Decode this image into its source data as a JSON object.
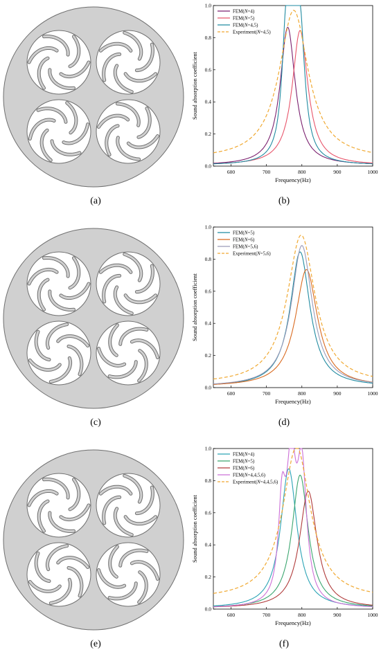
{
  "panels": [
    {
      "caption": "(a)",
      "bottom_variant": "ccw"
    },
    {
      "caption": "(c)",
      "bottom_variant": "cw"
    },
    {
      "caption": "(e)",
      "bottom_variant": "cw"
    }
  ],
  "colors": {
    "disk_fill": "#d0d0d0",
    "disk_stroke": "#6f6f6f",
    "hole_fill": "#ffffff",
    "experiment": "#f0a830"
  },
  "chart_data": [
    {
      "caption": "(b)",
      "type": "line",
      "xlabel": "Frequency(Hz)",
      "ylabel": "Sound absorption coefficient",
      "xlim": [
        550,
        1000
      ],
      "ylim": [
        0,
        1.0
      ],
      "xticks": [
        600,
        700,
        800,
        900,
        1000
      ],
      "yticks": [
        0.0,
        0.2,
        0.4,
        0.6,
        0.8,
        1.0
      ],
      "legend_position": "top-left",
      "series": [
        {
          "name": "FEM(N=4)",
          "label_pre": "FEM(",
          "label_var": "N",
          "label_post": "=4)",
          "color": "#7a1f6e",
          "dashed": false,
          "peaks": [
            {
              "f": 760,
              "a": 0.86,
              "w": 26
            }
          ],
          "base": 0.005
        },
        {
          "name": "FEM(N=5)",
          "label_pre": "FEM(",
          "label_var": "N",
          "label_post": "=5)",
          "color": "#e8546a",
          "dashed": false,
          "peaks": [
            {
              "f": 795,
              "a": 0.84,
              "w": 27
            }
          ],
          "base": 0.005
        },
        {
          "name": "FEM(N=4,5)",
          "label_pre": "FEM(",
          "label_var": "N",
          "label_post": "=4,5)",
          "color": "#1f8aa0",
          "dashed": false,
          "peaks": [
            {
              "f": 755,
              "a": 0.62,
              "w": 14
            },
            {
              "f": 773,
              "a": 0.8,
              "w": 14
            },
            {
              "f": 795,
              "a": 0.72,
              "w": 16
            }
          ],
          "base": 0.005
        },
        {
          "name": "Experiment(N=4,5)",
          "label_pre": "Experiment(",
          "label_var": "N",
          "label_post": "=4,5)",
          "color": "#f0a830",
          "dashed": true,
          "peaks": [
            {
              "f": 777,
              "a": 0.93,
              "w": 50
            }
          ],
          "base": 0.04
        }
      ]
    },
    {
      "caption": "(d)",
      "type": "line",
      "xlabel": "Frequency(Hz)",
      "ylabel": "Sound absorption coefficient",
      "xlim": [
        550,
        1000
      ],
      "ylim": [
        0,
        1.0
      ],
      "xticks": [
        600,
        700,
        800,
        900,
        1000
      ],
      "yticks": [
        0.0,
        0.2,
        0.4,
        0.6,
        0.8,
        1.0
      ],
      "legend_position": "top-left",
      "series": [
        {
          "name": "FEM(N=5)",
          "label_pre": "FEM(",
          "label_var": "N",
          "label_post": "=5)",
          "color": "#1f8aa0",
          "dashed": false,
          "peaks": [
            {
              "f": 795,
              "a": 0.84,
              "w": 34
            }
          ],
          "base": 0.005
        },
        {
          "name": "FEM(N=6)",
          "label_pre": "FEM(",
          "label_var": "N",
          "label_post": "=6)",
          "color": "#d9691e",
          "dashed": false,
          "peaks": [
            {
              "f": 813,
              "a": 0.73,
              "w": 38
            }
          ],
          "base": 0.005
        },
        {
          "name": "FEM(N=5,6)",
          "label_pre": "FEM(",
          "label_var": "N",
          "label_post": "=5,6)",
          "color": "#9a9ab8",
          "dashed": false,
          "peaks": [
            {
              "f": 800,
              "a": 0.88,
              "w": 36
            }
          ],
          "base": 0.005
        },
        {
          "name": "Experiment(N=5,6)",
          "label_pre": "Experiment(",
          "label_var": "N",
          "label_post": "=5,6)",
          "color": "#f0a830",
          "dashed": true,
          "peaks": [
            {
              "f": 798,
              "a": 0.93,
              "w": 48
            }
          ],
          "base": 0.02
        }
      ]
    },
    {
      "caption": "(f)",
      "type": "line",
      "xlabel": "Frequency(Hz)",
      "ylabel": "Sound absorption coefficient",
      "xlim": [
        550,
        1000
      ],
      "ylim": [
        0,
        1.0
      ],
      "xticks": [
        600,
        700,
        800,
        900,
        1000
      ],
      "yticks": [
        0.0,
        0.2,
        0.4,
        0.6,
        0.8,
        1.0
      ],
      "legend_position": "top-left",
      "series": [
        {
          "name": "FEM(N=4)",
          "label_pre": "FEM(",
          "label_var": "N",
          "label_post": "=4)",
          "color": "#2aa3b5",
          "dashed": false,
          "peaks": [
            {
              "f": 763,
              "a": 0.87,
              "w": 28
            }
          ],
          "base": 0.005
        },
        {
          "name": "FEM(N=5)",
          "label_pre": "FEM(",
          "label_var": "N",
          "label_post": "=5)",
          "color": "#3aa56e",
          "dashed": false,
          "peaks": [
            {
              "f": 795,
              "a": 0.83,
              "w": 28
            }
          ],
          "base": 0.005
        },
        {
          "name": "FEM(N=6)",
          "label_pre": "FEM(",
          "label_var": "N",
          "label_post": "=6)",
          "color": "#b03a3a",
          "dashed": false,
          "peaks": [
            {
              "f": 818,
              "a": 0.73,
              "w": 30
            }
          ],
          "base": 0.005
        },
        {
          "name": "FEM(N=4,4,5,6)",
          "label_pre": "FEM(",
          "label_var": "N",
          "label_post": "=4,4,5,6)",
          "color": "#cc6fd6",
          "dashed": false,
          "peaks": [
            {
              "f": 744,
              "a": 0.55,
              "w": 12
            },
            {
              "f": 770,
              "a": 0.82,
              "w": 16
            },
            {
              "f": 800,
              "a": 0.8,
              "w": 16
            }
          ],
          "base": 0.005
        },
        {
          "name": "Experiment(N=4,4,5,6)",
          "label_pre": "Experiment(",
          "label_var": "N",
          "label_post": "=4,4,5,6)",
          "color": "#f0a830",
          "dashed": true,
          "peaks": [
            {
              "f": 785,
              "a": 0.95,
              "w": 48
            }
          ],
          "base": 0.06
        }
      ]
    }
  ]
}
